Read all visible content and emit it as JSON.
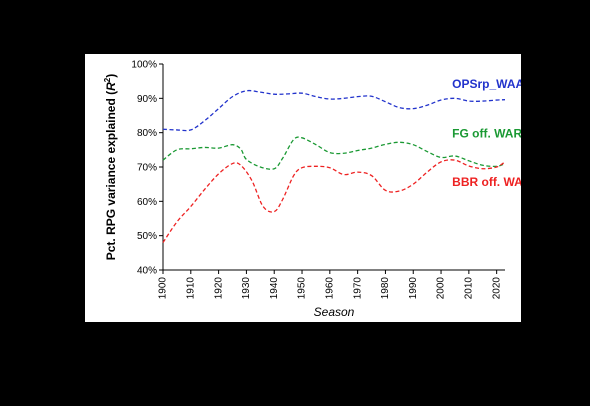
{
  "chart_data": {
    "type": "line",
    "title": "",
    "xlabel": "Season",
    "ylabel": "Pct. RPG variance explained (",
    "ylabel_sym": "R",
    "ylabel_sup": "2",
    "ylabel_end": ")",
    "xlim": [
      1900,
      2023
    ],
    "ylim": [
      40,
      100
    ],
    "grid": false,
    "x_ticks": [
      1900,
      1910,
      1920,
      1930,
      1940,
      1950,
      1960,
      1970,
      1980,
      1990,
      2000,
      2010,
      2020
    ],
    "y_ticks": [
      "40%",
      "50%",
      "60%",
      "70%",
      "80%",
      "90%",
      "100%"
    ],
    "y_tick_values": [
      40,
      50,
      60,
      70,
      80,
      90,
      100
    ],
    "series": [
      {
        "name": "OPSrp_WAA",
        "color": "#2233cc",
        "dashed": true,
        "x": [
          1900,
          1905,
          1910,
          1915,
          1920,
          1925,
          1930,
          1935,
          1940,
          1945,
          1950,
          1955,
          1960,
          1965,
          1970,
          1975,
          1980,
          1985,
          1990,
          1995,
          2000,
          2005,
          2010,
          2015,
          2020,
          2023
        ],
        "y": [
          81,
          80.8,
          80.8,
          83.5,
          87,
          90.5,
          92.2,
          91.8,
          91.2,
          91.3,
          91.5,
          90.5,
          89.8,
          90,
          90.5,
          90.6,
          89,
          87.3,
          87,
          88,
          89.5,
          90,
          89.2,
          89.2,
          89.5,
          89.6
        ]
      },
      {
        "name": "FG off. WAR",
        "color": "#1a9933",
        "dashed": true,
        "x": [
          1900,
          1905,
          1910,
          1915,
          1920,
          1925,
          1928,
          1930,
          1935,
          1940,
          1943,
          1947,
          1950,
          1955,
          1960,
          1965,
          1970,
          1975,
          1980,
          1985,
          1990,
          1995,
          2000,
          2005,
          2010,
          2015,
          2020,
          2023
        ],
        "y": [
          72,
          75,
          75.3,
          75.7,
          75.5,
          76.5,
          75.2,
          72.2,
          70,
          69.5,
          72.5,
          78,
          78.5,
          76.5,
          74.2,
          74,
          74.8,
          75.5,
          76.6,
          77.2,
          76.5,
          74.5,
          72.8,
          73.2,
          71.8,
          70.5,
          70.2,
          71
        ]
      },
      {
        "name": "BBR off. WAR",
        "color": "#ee2222",
        "dashed": true,
        "x": [
          1900,
          1905,
          1910,
          1915,
          1920,
          1925,
          1928,
          1932,
          1936,
          1940,
          1943,
          1947,
          1950,
          1955,
          1960,
          1965,
          1970,
          1975,
          1980,
          1985,
          1990,
          1995,
          2000,
          2005,
          2010,
          2015,
          2020,
          2023
        ],
        "y": [
          48,
          54,
          58.5,
          63.5,
          68,
          71,
          70.5,
          66,
          58.5,
          57,
          60.5,
          67.5,
          69.8,
          70.2,
          69.8,
          67.8,
          68.5,
          67.5,
          63.2,
          63,
          65,
          68.5,
          71.5,
          72,
          70.3,
          69.5,
          70,
          71.5
        ]
      }
    ],
    "annotations": [
      {
        "text": "OPSrp_WAA",
        "color": "#2233cc",
        "x": 2004,
        "y": 93
      },
      {
        "text": "FG off. WAR",
        "color": "#1a9933",
        "x": 2004,
        "y": 78.6
      },
      {
        "text": "BBR off. WAR",
        "color": "#ee2222",
        "x": 2004,
        "y": 64.4
      }
    ]
  }
}
